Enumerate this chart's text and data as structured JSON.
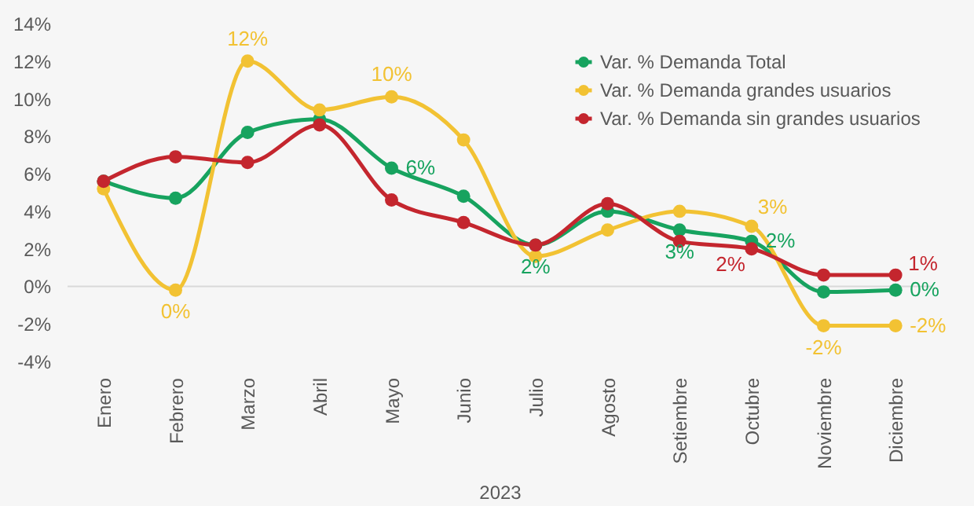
{
  "chart_data": {
    "type": "line",
    "xlabel": "2023",
    "categories": [
      "Enero",
      "Febrero",
      "Marzo",
      "Abril",
      "Mayo",
      "Junio",
      "Julio",
      "Agosto",
      "Setiembre",
      "Octubre",
      "Noviembre",
      "Diciembre"
    ],
    "series": [
      {
        "name": "Var. % Demanda Total",
        "color": "#17a35f",
        "values": [
          5.6,
          4.7,
          8.2,
          8.9,
          6.3,
          4.8,
          2.2,
          4.0,
          3.0,
          2.4,
          -0.3,
          -0.2
        ],
        "value_labels": [
          null,
          null,
          null,
          null,
          "6%",
          null,
          "2%",
          null,
          "3%",
          "2%",
          null,
          "0%"
        ]
      },
      {
        "name": "Var. % Demanda grandes usuarios",
        "color": "#f2c233",
        "values": [
          5.2,
          -0.2,
          12.0,
          9.4,
          10.1,
          7.8,
          1.6,
          3.0,
          4.0,
          3.2,
          -2.1,
          -2.1
        ],
        "value_labels": [
          null,
          "0%",
          "12%",
          null,
          "10%",
          null,
          null,
          null,
          null,
          "3%",
          "-2%",
          "-2%"
        ]
      },
      {
        "name": "Var. % Demanda sin grandes usuarios",
        "color": "#c4262e",
        "values": [
          5.6,
          6.9,
          6.6,
          8.6,
          4.6,
          3.4,
          2.2,
          4.4,
          2.4,
          2.0,
          0.6,
          0.6
        ],
        "value_labels": [
          null,
          null,
          null,
          null,
          null,
          null,
          null,
          null,
          null,
          "2%",
          null,
          "1%"
        ]
      }
    ],
    "ylim": [
      -4,
      14
    ],
    "yticks": [
      {
        "value": -4,
        "label": "-4%"
      },
      {
        "value": -2,
        "label": "-2%"
      },
      {
        "value": 0,
        "label": "0%"
      },
      {
        "value": 2,
        "label": "2%"
      },
      {
        "value": 4,
        "label": "4%"
      },
      {
        "value": 6,
        "label": "6%"
      },
      {
        "value": 8,
        "label": "8%"
      },
      {
        "value": 10,
        "label": "10%"
      },
      {
        "value": 12,
        "label": "12%"
      },
      {
        "value": 14,
        "label": "14%"
      }
    ],
    "ref_lines": [
      {
        "axis": "y",
        "value": 0,
        "color": "#d9d9d9"
      }
    ],
    "grid": false,
    "legend": "top right",
    "marker": "circle",
    "line_style": "solid"
  }
}
